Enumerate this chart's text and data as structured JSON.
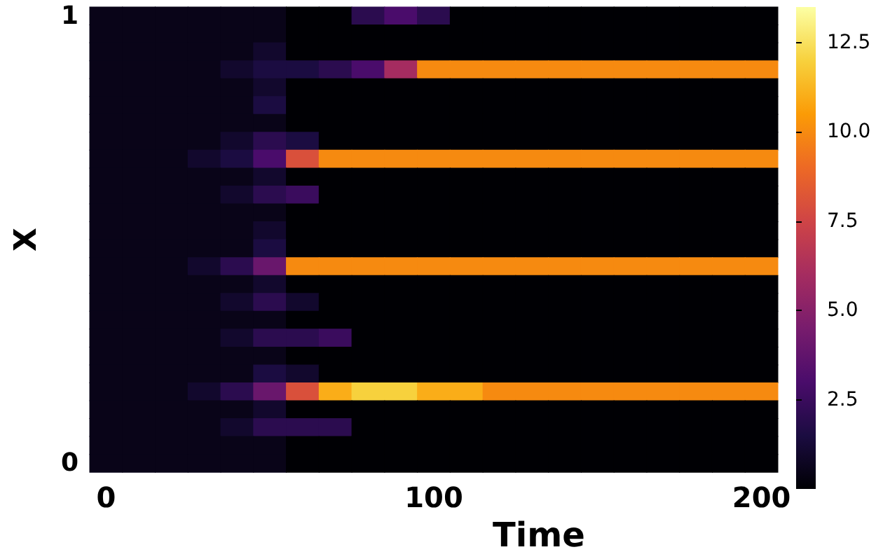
{
  "chart_data": {
    "type": "heatmap",
    "xlabel": "Time",
    "ylabel": "X",
    "categories": [
      "0",
      null,
      null,
      null,
      null,
      null,
      null,
      null,
      null,
      null,
      "100",
      null,
      null,
      null,
      null,
      null,
      null,
      null,
      null,
      null,
      "200"
    ],
    "y_categories": [
      "1",
      null,
      null,
      null,
      null,
      null,
      null,
      null,
      null,
      null,
      null,
      null,
      null,
      null,
      null,
      null,
      null,
      null,
      null,
      null,
      null,
      null,
      null,
      null,
      null,
      "0"
    ],
    "clim": [
      0,
      13.5
    ],
    "cticks": [
      {
        "value": 2.5,
        "label": "2.5"
      },
      {
        "value": 5,
        "label": "5.0"
      },
      {
        "value": 7.5,
        "label": "7.5"
      },
      {
        "value": 10,
        "label": "10.0"
      },
      {
        "value": 12.5,
        "label": "12.5"
      }
    ],
    "cells": [
      [
        0.5,
        0.5,
        0.5,
        0.5,
        0.5,
        0.5,
        0,
        0,
        2,
        3,
        2,
        0,
        0,
        0,
        0,
        0,
        0,
        0,
        0,
        0,
        0
      ],
      [
        0.5,
        0.5,
        0.5,
        0.5,
        0.5,
        0.5,
        0,
        0,
        0,
        0,
        0,
        0,
        0,
        0,
        0,
        0,
        0,
        0,
        0,
        0,
        0
      ],
      [
        0.5,
        0.5,
        0.5,
        0.5,
        0.5,
        1,
        0,
        0,
        0,
        0,
        0,
        0,
        0,
        0,
        0,
        0,
        0,
        0,
        0,
        0,
        0
      ],
      [
        0.5,
        0.5,
        0.5,
        0.5,
        1,
        1.5,
        1.5,
        2,
        3,
        6,
        10,
        10,
        10,
        10,
        10,
        10,
        10,
        10,
        10,
        10,
        10
      ],
      [
        0.5,
        0.5,
        0.5,
        0.5,
        0.5,
        1,
        0,
        0,
        0,
        0,
        0,
        0,
        0,
        0,
        0,
        0,
        0,
        0,
        0,
        0,
        0
      ],
      [
        0.5,
        0.5,
        0.5,
        0.5,
        0.5,
        1.5,
        0,
        0,
        0,
        0,
        0,
        0,
        0,
        0,
        0,
        0,
        0,
        0,
        0,
        0,
        0
      ],
      [
        0.5,
        0.5,
        0.5,
        0.5,
        0.5,
        0.5,
        0,
        0,
        0,
        0,
        0,
        0,
        0,
        0,
        0,
        0,
        0,
        0,
        0,
        0,
        0
      ],
      [
        0.5,
        0.5,
        0.5,
        0.5,
        1,
        2,
        1.5,
        0,
        0,
        0,
        0,
        0,
        0,
        0,
        0,
        0,
        0,
        0,
        0,
        0,
        0
      ],
      [
        0.5,
        0.5,
        0.5,
        1,
        1.5,
        3,
        8,
        10,
        10,
        10,
        10,
        10,
        10,
        10,
        10,
        10,
        10,
        10,
        10,
        10,
        10
      ],
      [
        0.5,
        0.5,
        0.5,
        0.5,
        0.5,
        1,
        0,
        0,
        0,
        0,
        0,
        0,
        0,
        0,
        0,
        0,
        0,
        0,
        0,
        0,
        0
      ],
      [
        0.5,
        0.5,
        0.5,
        0.5,
        1,
        2,
        2.5,
        0,
        0,
        0,
        0,
        0,
        0,
        0,
        0,
        0,
        0,
        0,
        0,
        0,
        0
      ],
      [
        0.5,
        0.5,
        0.5,
        0.5,
        0.5,
        0.5,
        0,
        0,
        0,
        0,
        0,
        0,
        0,
        0,
        0,
        0,
        0,
        0,
        0,
        0,
        0
      ],
      [
        0.5,
        0.5,
        0.5,
        0.5,
        0.5,
        1,
        0,
        0,
        0,
        0,
        0,
        0,
        0,
        0,
        0,
        0,
        0,
        0,
        0,
        0,
        0
      ],
      [
        0.5,
        0.5,
        0.5,
        0.5,
        0.5,
        1.5,
        0,
        0,
        0,
        0,
        0,
        0,
        0,
        0,
        0,
        0,
        0,
        0,
        0,
        0,
        0
      ],
      [
        0.5,
        0.5,
        0.5,
        1,
        2,
        4,
        10,
        10,
        10,
        10,
        10,
        10,
        10,
        10,
        10,
        10,
        10,
        10,
        10,
        10,
        10
      ],
      [
        0.5,
        0.5,
        0.5,
        0.5,
        0.5,
        1,
        0,
        0,
        0,
        0,
        0,
        0,
        0,
        0,
        0,
        0,
        0,
        0,
        0,
        0,
        0
      ],
      [
        0.5,
        0.5,
        0.5,
        0.5,
        1,
        2,
        1,
        0,
        0,
        0,
        0,
        0,
        0,
        0,
        0,
        0,
        0,
        0,
        0,
        0,
        0
      ],
      [
        0.5,
        0.5,
        0.5,
        0.5,
        0.5,
        0.5,
        0,
        0,
        0,
        0,
        0,
        0,
        0,
        0,
        0,
        0,
        0,
        0,
        0,
        0,
        0
      ],
      [
        0.5,
        0.5,
        0.5,
        0.5,
        1,
        2,
        2,
        2.5,
        0,
        0,
        0,
        0,
        0,
        0,
        0,
        0,
        0,
        0,
        0,
        0,
        0
      ],
      [
        0.5,
        0.5,
        0.5,
        0.5,
        0.5,
        0.5,
        0,
        0,
        0,
        0,
        0,
        0,
        0,
        0,
        0,
        0,
        0,
        0,
        0,
        0,
        0
      ],
      [
        0.5,
        0.5,
        0.5,
        0.5,
        0.5,
        1.5,
        1,
        0,
        0,
        0,
        0,
        0,
        0,
        0,
        0,
        0,
        0,
        0,
        0,
        0,
        0
      ],
      [
        0.5,
        0.5,
        0.5,
        1,
        2,
        4,
        8,
        11,
        12,
        12,
        11,
        11,
        10,
        10,
        10,
        10,
        10,
        10,
        10,
        10,
        10
      ],
      [
        0.5,
        0.5,
        0.5,
        0.5,
        0.5,
        1,
        0,
        0,
        0,
        0,
        0,
        0,
        0,
        0,
        0,
        0,
        0,
        0,
        0,
        0,
        0
      ],
      [
        0.5,
        0.5,
        0.5,
        0.5,
        1,
        2,
        2,
        2,
        0,
        0,
        0,
        0,
        0,
        0,
        0,
        0,
        0,
        0,
        0,
        0,
        0
      ],
      [
        0.5,
        0.5,
        0.5,
        0.5,
        0.5,
        0.5,
        0,
        0,
        0,
        0,
        0,
        0,
        0,
        0,
        0,
        0,
        0,
        0,
        0,
        0,
        0
      ],
      [
        0.5,
        0.5,
        0.5,
        0.5,
        0.5,
        0.5,
        0,
        0,
        0,
        0,
        0,
        0,
        0,
        0,
        0,
        0,
        0,
        0,
        0,
        0,
        0
      ]
    ]
  }
}
